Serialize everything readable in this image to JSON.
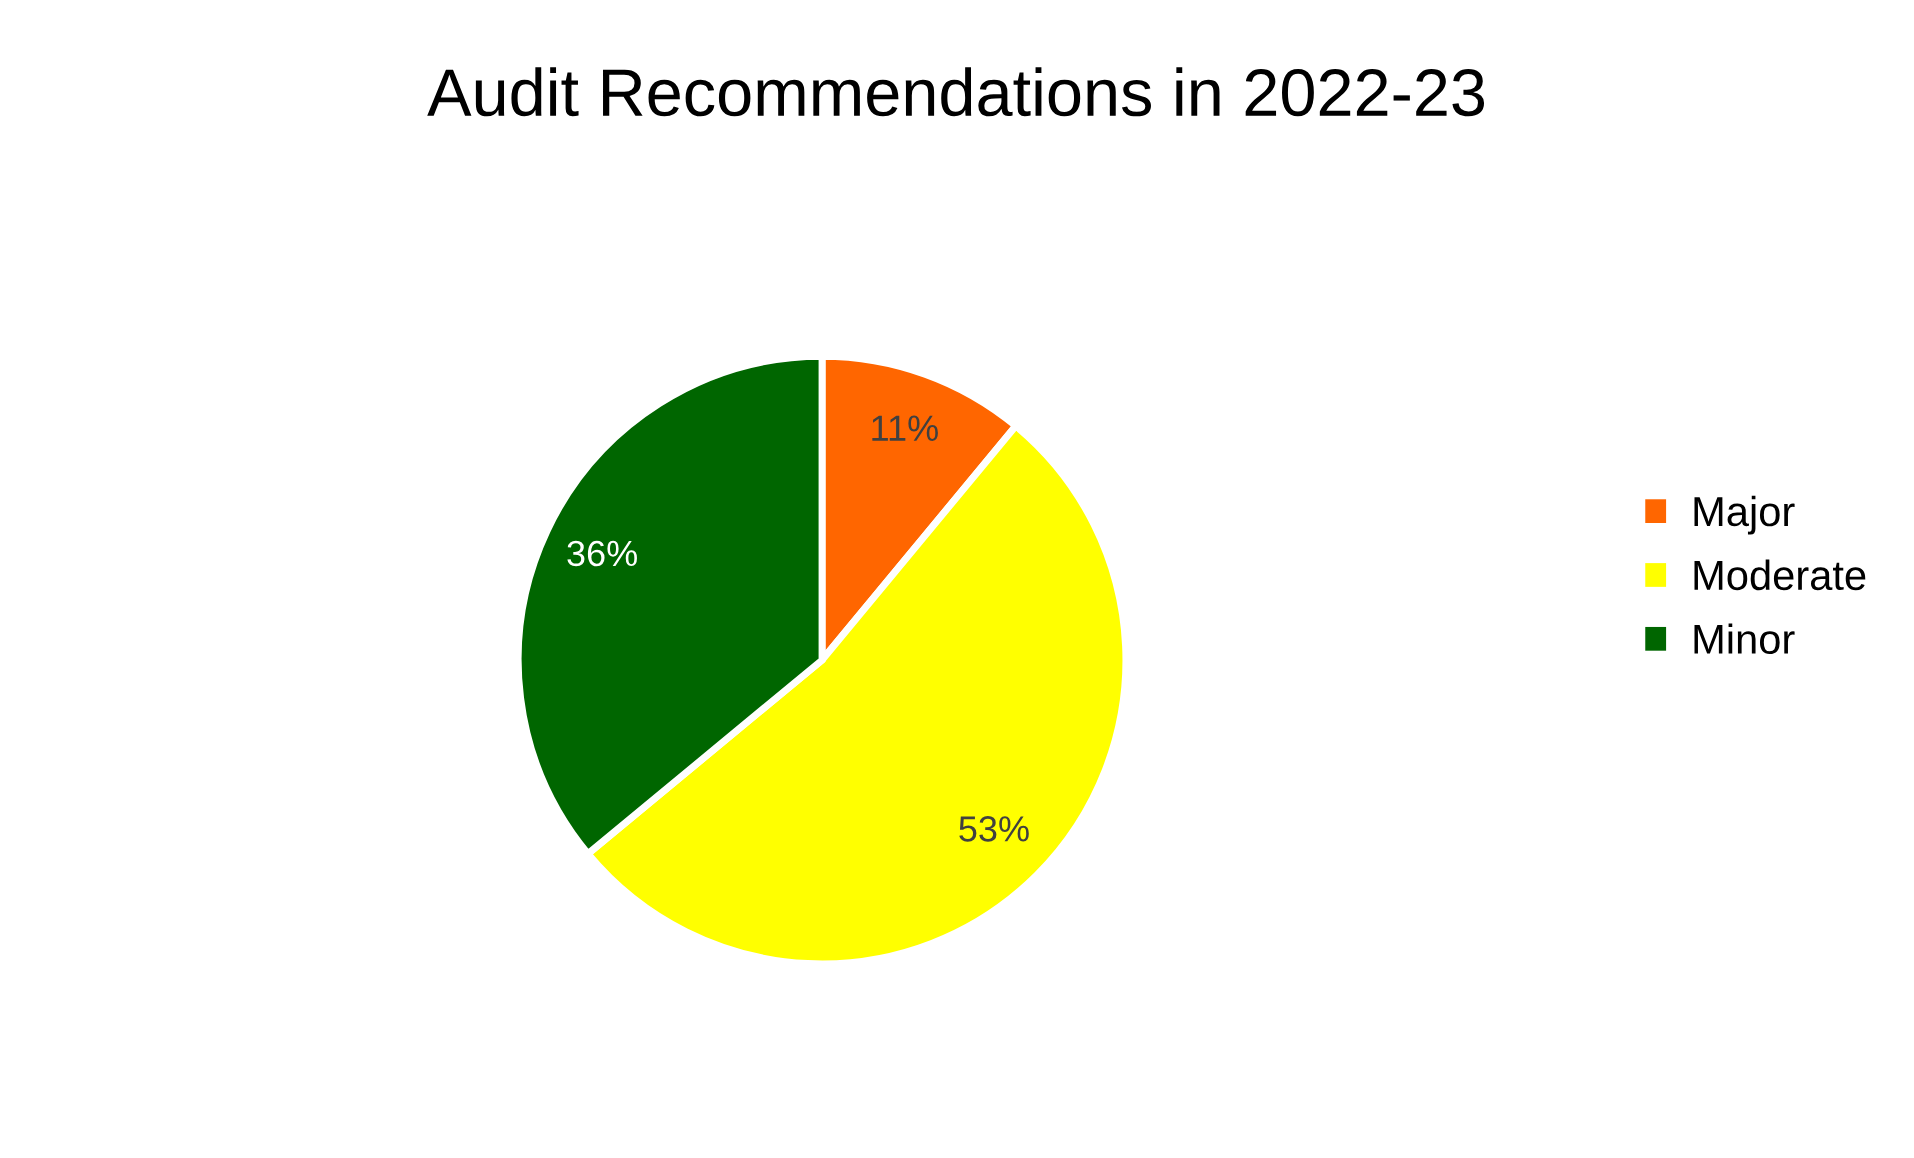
{
  "chart_data": {
    "type": "pie",
    "title": "Audit Recommendations in 2022-23",
    "categories": [
      "Major",
      "Moderate",
      "Minor"
    ],
    "values": [
      11,
      53,
      36
    ],
    "colors": [
      "#ff6600",
      "#ffff00",
      "#006600"
    ],
    "value_labels": [
      "11%",
      "53%",
      "36%"
    ],
    "legend": "right"
  }
}
